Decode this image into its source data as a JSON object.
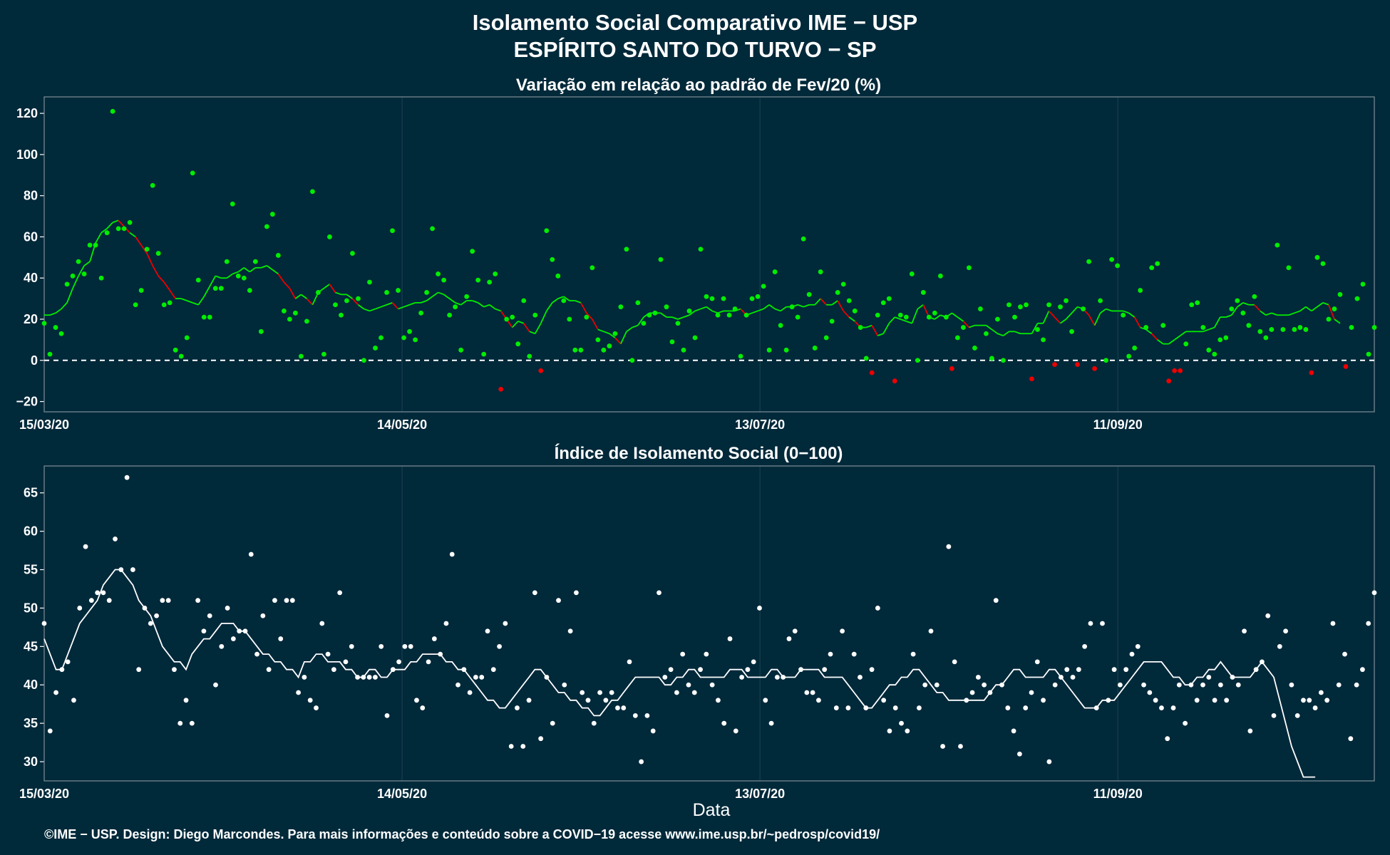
{
  "titles": {
    "line1": "Isolamento Social Comparativo IME − USP",
    "line2": "ESPÍRITO SANTO DO TURVO − SP"
  },
  "xlabel": "Data",
  "footer": "©IME − USP. Design: Diego Marcondes. Para mais informações e conteúdo sobre a COVID−19 acesse www.ime.usp.br/~pedrosp/covid19/",
  "colors": {
    "background": "#00293a",
    "positive": "#00ee00",
    "negative": "#ee0000",
    "index": "#ffffff"
  },
  "chart_data": [
    {
      "type": "scatter",
      "title": "Variação em relação ao padrão de Fev/20 (%)",
      "x_start": "2020-03-15",
      "x_end": "2020-10-24",
      "xticks": [
        "15/03/20",
        "14/05/20",
        "13/07/20",
        "11/09/20"
      ],
      "xtick_dates": [
        "2020-03-15",
        "2020-05-14",
        "2020-07-13",
        "2020-09-11"
      ],
      "ylim": [
        -25,
        128
      ],
      "yticks": [
        -20,
        0,
        20,
        40,
        60,
        80,
        100,
        120
      ],
      "reference_line": 0,
      "grid": true,
      "points": [
        18,
        3,
        16,
        13,
        37,
        41,
        48,
        42,
        56,
        56,
        40,
        62,
        121,
        64,
        64,
        67,
        27,
        34,
        54,
        85,
        52,
        27,
        28,
        5,
        2,
        11,
        91,
        39,
        21,
        21,
        35,
        35,
        48,
        76,
        41,
        40,
        34,
        48,
        14,
        65,
        71,
        51,
        24,
        20,
        23,
        2,
        19,
        82,
        33,
        3,
        60,
        27,
        22,
        29,
        52,
        30,
        0,
        38,
        6,
        11,
        33,
        63,
        34,
        11,
        14,
        10,
        23,
        33,
        64,
        42,
        39,
        22,
        26,
        5,
        31,
        53,
        39,
        3,
        38,
        42,
        -14,
        20,
        21,
        8,
        29,
        2,
        22,
        -5,
        63,
        49,
        41,
        29,
        20,
        5,
        5,
        21,
        45,
        10,
        5,
        7,
        13,
        26,
        54,
        0,
        28,
        18,
        22,
        23,
        49,
        26,
        9,
        18,
        5,
        24,
        11,
        54,
        31,
        30,
        22,
        30,
        22,
        25,
        2,
        22,
        30,
        31,
        36,
        5,
        43,
        17,
        5,
        26,
        21,
        59,
        32,
        6,
        43,
        11,
        19,
        33,
        37,
        29,
        24,
        16,
        1,
        -6,
        22,
        28,
        30,
        -10,
        22,
        21,
        42,
        0,
        33,
        21,
        23,
        41,
        21,
        -4,
        11,
        16,
        45,
        6,
        25,
        13,
        1,
        20,
        0,
        27,
        21,
        26,
        27,
        -9,
        15,
        10,
        27,
        -2,
        26,
        29,
        14,
        -2,
        25,
        48,
        -4,
        29,
        0,
        49,
        46,
        22,
        2,
        6,
        34,
        16,
        45,
        47,
        17,
        -10,
        -5,
        -5,
        8,
        27,
        28,
        16,
        5,
        3,
        10,
        11,
        25,
        29,
        23,
        17,
        31,
        14,
        11,
        15,
        56,
        15,
        45,
        15,
        16,
        15,
        -6,
        50,
        47,
        20,
        25,
        32,
        -3,
        16,
        30,
        37,
        3,
        16
      ],
      "rolling_mean": [
        22,
        22,
        23,
        25,
        28,
        35,
        41,
        46,
        48,
        57,
        62,
        64,
        67,
        68,
        65,
        62,
        60,
        56,
        52,
        46,
        41,
        38,
        34,
        30,
        30,
        29,
        28,
        27,
        31,
        36,
        41,
        40,
        40,
        42,
        43,
        45,
        43,
        45,
        45,
        46,
        44,
        42,
        38,
        35,
        30,
        32,
        30,
        27,
        33,
        35,
        37,
        33,
        32,
        32,
        30,
        27,
        25,
        24,
        25,
        26,
        27,
        28,
        25,
        26,
        27,
        28,
        28,
        29,
        31,
        33,
        32,
        30,
        28,
        27,
        29,
        29,
        28,
        26,
        27,
        25,
        24,
        20,
        16,
        19,
        18,
        14,
        13,
        18,
        24,
        28,
        30,
        31,
        29,
        29,
        28,
        23,
        20,
        15,
        14,
        13,
        11,
        8,
        14,
        16,
        17,
        21,
        23,
        23,
        23,
        21,
        21,
        20,
        21,
        22,
        24,
        25,
        26,
        24,
        23,
        24,
        24,
        24,
        25,
        22,
        23,
        24,
        25,
        27,
        25,
        24,
        26,
        26,
        27,
        26,
        27,
        27,
        30,
        27,
        27,
        29,
        24,
        21,
        19,
        16,
        16,
        17,
        12,
        13,
        18,
        21,
        20,
        19,
        18,
        25,
        27,
        21,
        20,
        22,
        21,
        23,
        21,
        19,
        16,
        17,
        17,
        17,
        15,
        13,
        12,
        14,
        14,
        13,
        13,
        13,
        18,
        18,
        24,
        21,
        18,
        20,
        23,
        26,
        25,
        22,
        17,
        23,
        25,
        24,
        24,
        24,
        23,
        21,
        16,
        15,
        13,
        10,
        8,
        8,
        10,
        12,
        14,
        14,
        14,
        14,
        15,
        16,
        21,
        21,
        22,
        26,
        28,
        27,
        27,
        24,
        22,
        23,
        22,
        22,
        22,
        23,
        24,
        26,
        24,
        26,
        28,
        27,
        20,
        18
      ],
      "ylabel": ""
    },
    {
      "type": "scatter",
      "title": "Índice de Isolamento Social (0−100)",
      "x_start": "2020-03-15",
      "x_end": "2020-10-24",
      "xticks": [
        "15/03/20",
        "14/05/20",
        "13/07/20",
        "11/09/20"
      ],
      "xtick_dates": [
        "2020-03-15",
        "2020-05-14",
        "2020-07-13",
        "2020-09-11"
      ],
      "ylim": [
        27.5,
        68.5
      ],
      "yticks": [
        30,
        35,
        40,
        45,
        50,
        55,
        60,
        65
      ],
      "grid": true,
      "points": [
        48,
        34,
        39,
        42,
        43,
        38,
        50,
        58,
        51,
        52,
        52,
        51,
        59,
        55,
        67,
        55,
        42,
        50,
        48,
        49,
        51,
        51,
        42,
        35,
        38,
        35,
        51,
        47,
        49,
        40,
        45,
        50,
        46,
        47,
        47,
        57,
        44,
        49,
        42,
        51,
        46,
        51,
        51,
        39,
        41,
        38,
        37,
        48,
        44,
        42,
        52,
        43,
        45,
        41,
        41,
        41,
        41,
        45,
        36,
        42,
        43,
        45,
        45,
        38,
        37,
        43,
        46,
        44,
        48,
        57,
        40,
        42,
        39,
        41,
        41,
        47,
        42,
        45,
        48,
        32,
        37,
        32,
        38,
        52,
        33,
        41,
        35,
        51,
        40,
        47,
        52,
        39,
        38,
        35,
        39,
        38,
        39,
        37,
        37,
        43,
        36,
        30,
        36,
        34,
        52,
        41,
        42,
        39,
        44,
        40,
        39,
        42,
        44,
        40,
        38,
        35,
        46,
        34,
        41,
        42,
        43,
        50,
        38,
        35,
        41,
        41,
        46,
        47,
        42,
        39,
        39,
        38,
        42,
        44,
        37,
        47,
        37,
        44,
        41,
        37,
        42,
        50,
        38,
        34,
        37,
        35,
        34,
        44,
        37,
        40,
        47,
        40,
        32,
        58,
        43,
        32,
        38,
        39,
        41,
        40,
        39,
        51,
        40,
        37,
        34,
        31,
        37,
        39,
        43,
        38,
        30,
        40,
        41,
        42,
        41,
        42,
        45,
        48,
        37,
        48,
        38,
        42,
        40,
        42,
        44,
        45,
        40,
        39,
        38,
        37,
        33,
        37,
        40,
        35,
        40,
        38,
        40,
        41,
        38,
        40,
        38,
        41,
        40,
        47,
        34,
        42,
        43,
        49,
        36,
        45,
        47,
        40,
        36,
        38,
        38,
        37,
        39,
        38,
        48,
        40,
        44,
        33,
        40,
        42,
        48,
        52
      ],
      "rolling_mean": [
        46,
        44,
        42,
        42,
        44,
        46,
        48,
        49,
        50,
        51,
        53,
        54,
        55,
        55,
        54,
        53,
        51,
        50,
        49,
        47,
        45,
        44,
        43,
        43,
        42,
        44,
        45,
        46,
        46,
        47,
        48,
        48,
        48,
        47,
        47,
        46,
        45,
        44,
        44,
        43,
        43,
        42,
        42,
        41,
        43,
        43,
        44,
        44,
        43,
        43,
        43,
        42,
        42,
        41,
        41,
        42,
        42,
        41,
        41,
        42,
        42,
        42,
        43,
        43,
        44,
        44,
        44,
        44,
        43,
        43,
        42,
        42,
        41,
        40,
        39,
        38,
        38,
        37,
        37,
        38,
        39,
        40,
        41,
        42,
        42,
        41,
        40,
        39,
        39,
        38,
        38,
        37,
        37,
        36,
        36,
        37,
        38,
        38,
        39,
        40,
        41,
        41,
        41,
        41,
        41,
        40,
        40,
        41,
        41,
        42,
        42,
        41,
        41,
        41,
        41,
        41,
        42,
        42,
        42,
        41,
        41,
        41,
        41,
        42,
        42,
        41,
        41,
        41,
        42,
        42,
        42,
        42,
        41,
        41,
        41,
        41,
        40,
        39,
        38,
        37,
        37,
        38,
        39,
        40,
        40,
        41,
        41,
        42,
        42,
        41,
        40,
        39,
        39,
        38,
        38,
        38,
        38,
        38,
        38,
        38,
        39,
        40,
        40,
        41,
        42,
        42,
        41,
        41,
        41,
        41,
        42,
        42,
        41,
        40,
        39,
        38,
        37,
        37,
        37,
        38,
        38,
        38,
        39,
        40,
        41,
        42,
        43,
        43,
        43,
        43,
        42,
        41,
        41,
        40,
        40,
        41,
        41,
        42,
        42,
        43,
        42,
        41,
        41,
        41,
        41,
        42,
        43,
        42,
        41,
        38,
        35,
        32,
        30,
        28,
        28,
        28
      ],
      "ylabel": ""
    }
  ]
}
